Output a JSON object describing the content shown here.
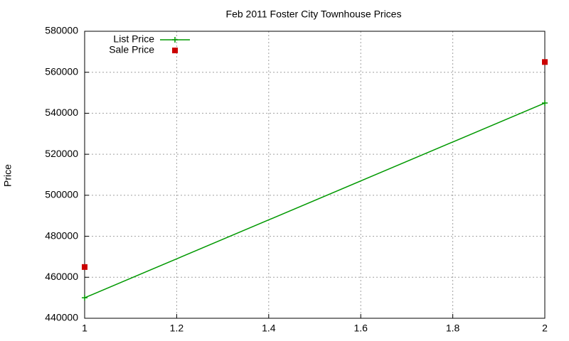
{
  "chart_data": {
    "type": "line",
    "title": "Feb 2011 Foster City Townhouse Prices",
    "ylabel": "Price",
    "series": [
      {
        "name": "List Price",
        "color": "#009900",
        "mode": "lines+points",
        "marker": "plus",
        "x": [
          1,
          2
        ],
        "values": [
          450000,
          545000
        ]
      },
      {
        "name": "Sale Price",
        "color": "#cc0000",
        "mode": "points",
        "marker": "square",
        "x": [
          1,
          2
        ],
        "values": [
          465000,
          565000
        ]
      }
    ],
    "xlim": [
      1,
      2
    ],
    "xticks": [
      1,
      1.2,
      1.4,
      1.6,
      1.8,
      2
    ],
    "ylim": [
      440000,
      580000
    ],
    "yticks": [
      440000,
      460000,
      480000,
      500000,
      520000,
      540000,
      560000,
      580000
    ],
    "grid": true,
    "legend": "top-left"
  }
}
